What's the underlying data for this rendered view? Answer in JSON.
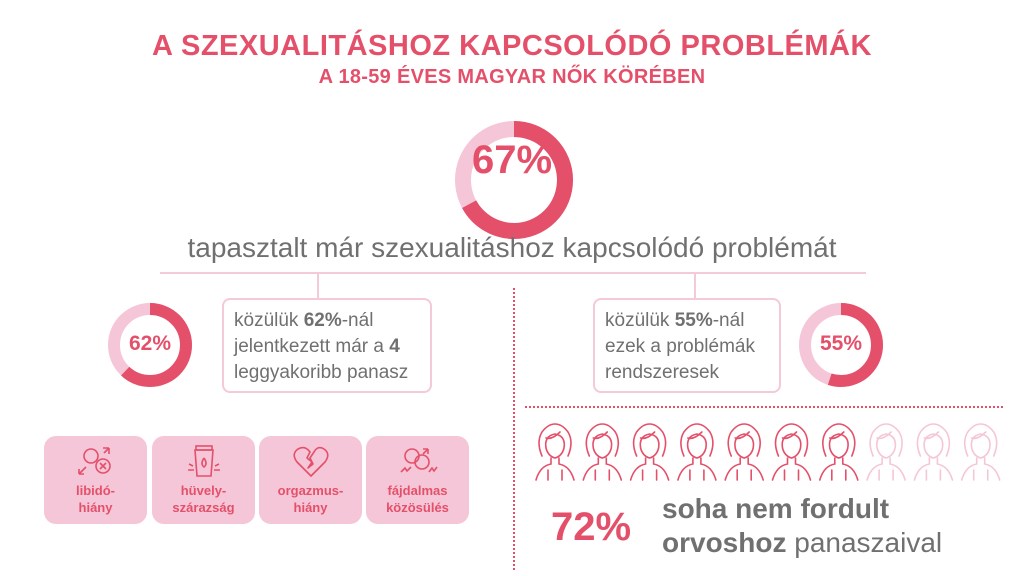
{
  "header": {
    "title": "A SZEXUALITÁSHOZ KAPCSOLÓDÓ PROBLÉMÁK",
    "subtitle": "A 18-59 ÉVES MAGYAR NŐK KÖRÉBEN"
  },
  "main_stat": {
    "percent_label": "67%",
    "value": 67,
    "text": "tapasztalt már szexualitáshoz kapcsolódó problémát"
  },
  "left_stat": {
    "percent_label": "62%",
    "value": 62,
    "text_prefix": "közülük ",
    "text_bold1": "62%",
    "text_mid": "-nál jelentkezett már a ",
    "text_bold2": "4",
    "text_suffix": " leggyakoribb panasz"
  },
  "right_stat": {
    "percent_label": "55%",
    "value": 55,
    "text_prefix": "közülük ",
    "text_bold": "55%",
    "text_suffix": "-nál ezek a problémák rendszeresek"
  },
  "complaints": [
    {
      "line1": "libidó-",
      "line2": "hiány",
      "icon": "gender-decline-icon"
    },
    {
      "line1": "hüvely-",
      "line2": "szárazság",
      "icon": "lubricant-tube-icon"
    },
    {
      "line1": "orgazmus-",
      "line2": "hiány",
      "icon": "broken-heart-icon"
    },
    {
      "line1": "fájdalmas",
      "line2": "közösülés",
      "icon": "pain-gender-icon"
    }
  ],
  "women_figures": {
    "total": 10,
    "highlighted": 7,
    "icon": "woman-icon"
  },
  "doctor_stat": {
    "percent_label": "72%",
    "text_bold": "soha nem fordult orvoshoz",
    "text_rest": " panaszaival"
  },
  "colors": {
    "accent": "#e4506a",
    "light": "#f5c6d7",
    "text": "#707070"
  }
}
